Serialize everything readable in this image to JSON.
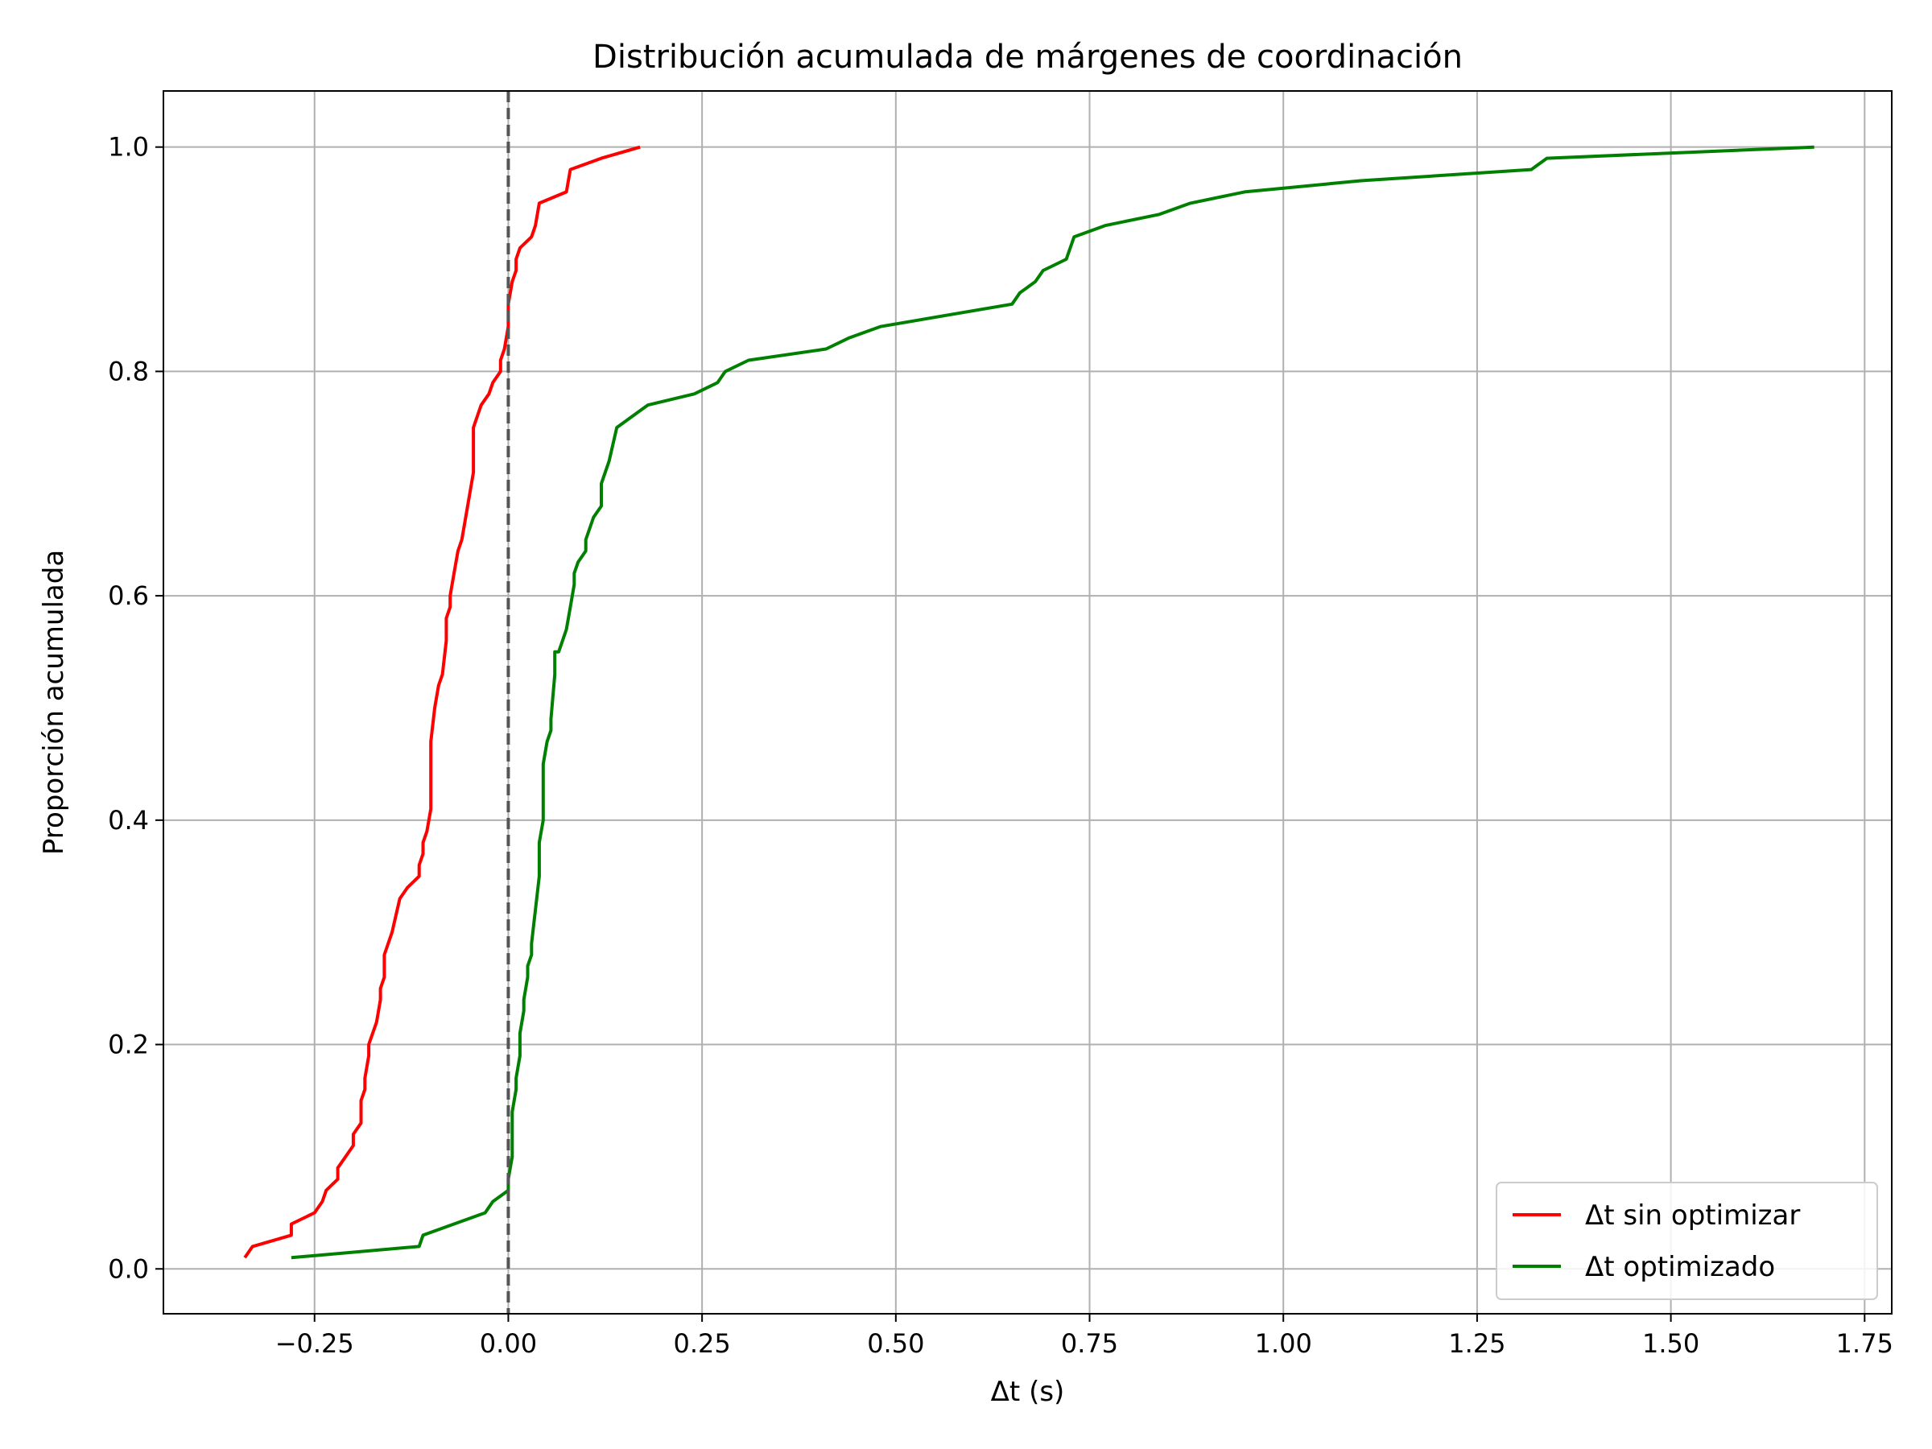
{
  "chart_data": {
    "type": "line",
    "title": "Distribución acumulada de márgenes de coordinación",
    "xlabel": "Δt (s)",
    "ylabel": "Proporción acumulada",
    "xlim": [
      -0.445,
      1.785
    ],
    "ylim": [
      -0.04,
      1.05
    ],
    "xticks": [
      -0.25,
      0.0,
      0.25,
      0.5,
      0.75,
      1.0,
      1.25,
      1.5,
      1.75
    ],
    "xtick_labels": [
      "−0.25",
      "0.00",
      "0.25",
      "0.50",
      "0.75",
      "1.00",
      "1.25",
      "1.50",
      "1.75"
    ],
    "yticks": [
      0.0,
      0.2,
      0.4,
      0.6,
      0.8,
      1.0
    ],
    "ytick_labels": [
      "0.0",
      "0.2",
      "0.4",
      "0.6",
      "0.8",
      "1.0"
    ],
    "grid": true,
    "legend_position": "lower-right",
    "reference_line": {
      "x": 0.0,
      "style": "dashed",
      "color": "#555555"
    },
    "series": [
      {
        "name": "Δt sin optimizar",
        "color": "#ff0000",
        "points": [
          [
            -0.34,
            0.01
          ],
          [
            -0.33,
            0.02
          ],
          [
            -0.28,
            0.03
          ],
          [
            -0.28,
            0.04
          ],
          [
            -0.25,
            0.05
          ],
          [
            -0.24,
            0.06
          ],
          [
            -0.235,
            0.07
          ],
          [
            -0.22,
            0.08
          ],
          [
            -0.22,
            0.09
          ],
          [
            -0.21,
            0.1
          ],
          [
            -0.2,
            0.11
          ],
          [
            -0.2,
            0.12
          ],
          [
            -0.19,
            0.13
          ],
          [
            -0.19,
            0.14
          ],
          [
            -0.19,
            0.15
          ],
          [
            -0.185,
            0.16
          ],
          [
            -0.185,
            0.17
          ],
          [
            -0.18,
            0.19
          ],
          [
            -0.18,
            0.2
          ],
          [
            -0.17,
            0.22
          ],
          [
            -0.165,
            0.24
          ],
          [
            -0.165,
            0.25
          ],
          [
            -0.16,
            0.26
          ],
          [
            -0.16,
            0.28
          ],
          [
            -0.155,
            0.29
          ],
          [
            -0.15,
            0.3
          ],
          [
            -0.14,
            0.33
          ],
          [
            -0.13,
            0.34
          ],
          [
            -0.115,
            0.35
          ],
          [
            -0.115,
            0.36
          ],
          [
            -0.11,
            0.37
          ],
          [
            -0.11,
            0.38
          ],
          [
            -0.105,
            0.39
          ],
          [
            -0.1,
            0.41
          ],
          [
            -0.1,
            0.44
          ],
          [
            -0.1,
            0.47
          ],
          [
            -0.095,
            0.5
          ],
          [
            -0.09,
            0.52
          ],
          [
            -0.085,
            0.53
          ],
          [
            -0.08,
            0.56
          ],
          [
            -0.08,
            0.58
          ],
          [
            -0.075,
            0.59
          ],
          [
            -0.075,
            0.6
          ],
          [
            -0.07,
            0.62
          ],
          [
            -0.065,
            0.64
          ],
          [
            -0.06,
            0.65
          ],
          [
            -0.055,
            0.67
          ],
          [
            -0.05,
            0.69
          ],
          [
            -0.045,
            0.71
          ],
          [
            -0.045,
            0.73
          ],
          [
            -0.045,
            0.75
          ],
          [
            -0.04,
            0.76
          ],
          [
            -0.035,
            0.77
          ],
          [
            -0.025,
            0.78
          ],
          [
            -0.02,
            0.79
          ],
          [
            -0.01,
            0.8
          ],
          [
            -0.01,
            0.81
          ],
          [
            -0.005,
            0.82
          ],
          [
            0.0,
            0.84
          ],
          [
            0.0,
            0.85
          ],
          [
            0.0,
            0.86
          ],
          [
            0.005,
            0.88
          ],
          [
            0.01,
            0.89
          ],
          [
            0.01,
            0.9
          ],
          [
            0.015,
            0.91
          ],
          [
            0.03,
            0.92
          ],
          [
            0.035,
            0.93
          ],
          [
            0.04,
            0.95
          ],
          [
            0.075,
            0.96
          ],
          [
            0.08,
            0.98
          ],
          [
            0.12,
            0.99
          ],
          [
            0.17,
            1.0
          ]
        ]
      },
      {
        "name": "Δt optimizado",
        "color": "#008000",
        "points": [
          [
            -0.28,
            0.01
          ],
          [
            -0.115,
            0.02
          ],
          [
            -0.11,
            0.03
          ],
          [
            -0.07,
            0.04
          ],
          [
            -0.03,
            0.05
          ],
          [
            -0.02,
            0.06
          ],
          [
            0.0,
            0.07
          ],
          [
            0.0,
            0.08
          ],
          [
            0.005,
            0.1
          ],
          [
            0.005,
            0.12
          ],
          [
            0.005,
            0.14
          ],
          [
            0.01,
            0.16
          ],
          [
            0.01,
            0.17
          ],
          [
            0.015,
            0.19
          ],
          [
            0.015,
            0.21
          ],
          [
            0.02,
            0.23
          ],
          [
            0.02,
            0.24
          ],
          [
            0.025,
            0.26
          ],
          [
            0.025,
            0.27
          ],
          [
            0.03,
            0.28
          ],
          [
            0.03,
            0.29
          ],
          [
            0.035,
            0.32
          ],
          [
            0.04,
            0.35
          ],
          [
            0.04,
            0.38
          ],
          [
            0.045,
            0.4
          ],
          [
            0.045,
            0.42
          ],
          [
            0.045,
            0.45
          ],
          [
            0.05,
            0.47
          ],
          [
            0.055,
            0.48
          ],
          [
            0.055,
            0.49
          ],
          [
            0.06,
            0.53
          ],
          [
            0.06,
            0.55
          ],
          [
            0.065,
            0.55
          ],
          [
            0.07,
            0.56
          ],
          [
            0.075,
            0.57
          ],
          [
            0.08,
            0.59
          ],
          [
            0.085,
            0.61
          ],
          [
            0.085,
            0.62
          ],
          [
            0.09,
            0.63
          ],
          [
            0.1,
            0.64
          ],
          [
            0.1,
            0.65
          ],
          [
            0.11,
            0.67
          ],
          [
            0.12,
            0.68
          ],
          [
            0.12,
            0.7
          ],
          [
            0.125,
            0.71
          ],
          [
            0.13,
            0.72
          ],
          [
            0.14,
            0.75
          ],
          [
            0.18,
            0.77
          ],
          [
            0.24,
            0.78
          ],
          [
            0.27,
            0.79
          ],
          [
            0.28,
            0.8
          ],
          [
            0.31,
            0.81
          ],
          [
            0.41,
            0.82
          ],
          [
            0.44,
            0.83
          ],
          [
            0.48,
            0.84
          ],
          [
            0.65,
            0.86
          ],
          [
            0.66,
            0.87
          ],
          [
            0.68,
            0.88
          ],
          [
            0.69,
            0.89
          ],
          [
            0.72,
            0.9
          ],
          [
            0.73,
            0.92
          ],
          [
            0.77,
            0.93
          ],
          [
            0.84,
            0.94
          ],
          [
            0.88,
            0.95
          ],
          [
            0.95,
            0.96
          ],
          [
            1.1,
            0.97
          ],
          [
            1.32,
            0.98
          ],
          [
            1.34,
            0.99
          ],
          [
            1.685,
            1.0
          ]
        ]
      }
    ]
  }
}
